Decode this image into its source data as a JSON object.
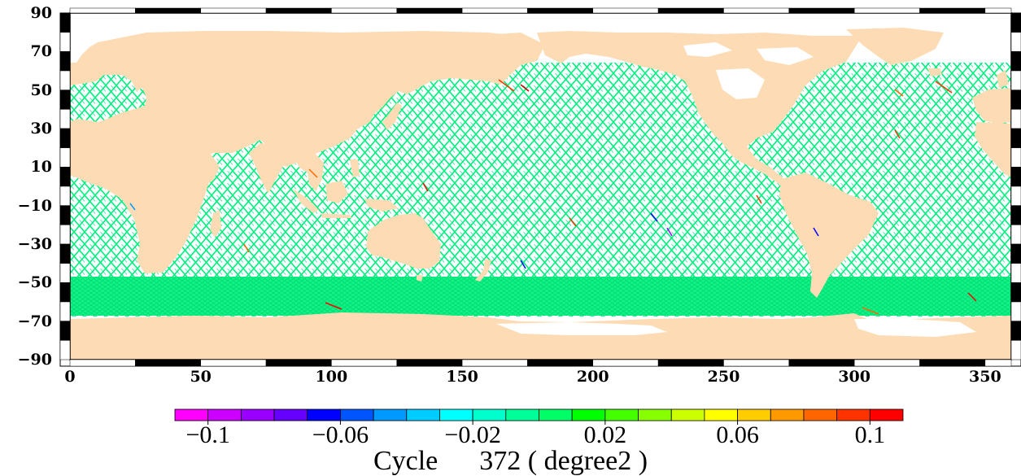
{
  "map": {
    "y_axis_ticks": [
      "90",
      "70",
      "50",
      "30",
      "10",
      "−10",
      "−30",
      "−50",
      "−70",
      "−90"
    ],
    "y_axis_values": [
      90,
      70,
      50,
      30,
      10,
      -10,
      -30,
      -50,
      -70,
      -90
    ],
    "x_axis_ticks": [
      "0",
      "50",
      "100",
      "150",
      "200",
      "250",
      "300",
      "350"
    ],
    "x_axis_values": [
      0,
      50,
      100,
      150,
      200,
      250,
      300,
      350
    ],
    "lon_range": [
      0,
      360
    ],
    "lat_range": [
      -90,
      90
    ],
    "track_lat_limit": 66,
    "land_color": "#fddcb5",
    "ocean_track_color": "#00f080",
    "background_color": "#ffffff"
  },
  "colorbar": {
    "colors": [
      "#ff00ff",
      "#cc00ff",
      "#9900ff",
      "#6600ff",
      "#0000ff",
      "#0055ff",
      "#0099ff",
      "#00ccff",
      "#00ffff",
      "#00ffcc",
      "#00ff99",
      "#00ff66",
      "#00ff00",
      "#44ff00",
      "#88ff00",
      "#ccff00",
      "#ffff00",
      "#ffcc00",
      "#ff9900",
      "#ff6600",
      "#ff3300",
      "#ff0000"
    ],
    "tick_labels": [
      "−0.1",
      "−0.06",
      "−0.02",
      "0.02",
      "0.06",
      "0.1"
    ],
    "tick_values": [
      -0.1,
      -0.06,
      -0.02,
      0.02,
      0.06,
      0.1
    ],
    "range": [
      -0.11,
      0.11
    ]
  },
  "caption": {
    "label": "Cycle",
    "cycle_number": "372",
    "units": "( degree2 )"
  }
}
